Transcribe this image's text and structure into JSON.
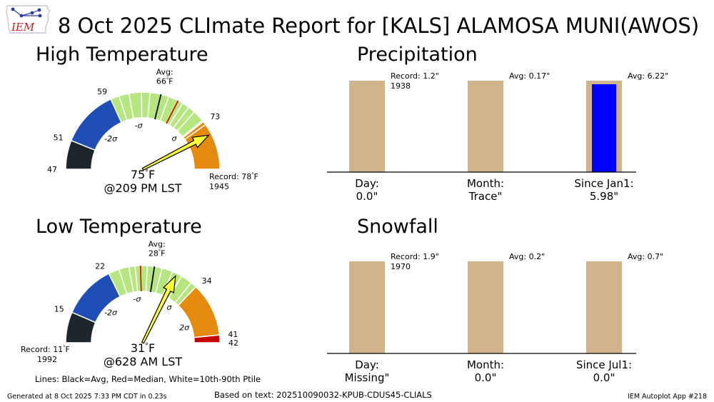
{
  "header": {
    "logo_text": "IEM",
    "title": "8 Oct 2025 CLImate Report for [KALS] ALAMOSA MUNI(AWOS)"
  },
  "footer": {
    "generated": "Generated at 8 Oct 2025 7:33 PM CDT in 0.23s",
    "based_on": "Based on text: 202510090032-KPUB-CDUS45-CLIALS",
    "app": "IEM Autoplot App #218"
  },
  "legend_note": "Lines: Black=Avg, Red=Median, White=10th-90th Ptile",
  "colors": {
    "very_cold": "#1c272d",
    "cold": "#1f4fb6",
    "normal": "#b5e67f",
    "warm": "#e68a0e",
    "very_warm": "#c40000",
    "bar": "#d2b48c",
    "bar_fill": "#0000ff",
    "needle": "#ffff33"
  },
  "chart_data": [
    {
      "type": "gauge",
      "title": "High Temperature",
      "min": 47,
      "max": 80,
      "avg": 66,
      "avg_label": "Avg:",
      "avg_value": "66$^\\circ$F",
      "median": 68.5,
      "p10": 61.6,
      "p90": 70.2,
      "observed": 75,
      "observed_label": "75$^\\circ$F",
      "observed_time": "@209 PM LST",
      "record_label": "Record: 78$^\\circ$F",
      "record_year": "1945",
      "bands": [
        {
          "from": 47,
          "to": 51,
          "color": "very_cold"
        },
        {
          "from": 51,
          "to": 59,
          "color": "cold"
        },
        {
          "from": 59,
          "to": 73,
          "color": "normal"
        },
        {
          "from": 73,
          "to": 80,
          "color": "warm"
        }
      ],
      "tick_values": [
        {
          "value": 47,
          "text": "47"
        },
        {
          "value": 51,
          "text": "51"
        },
        {
          "value": 59,
          "text": "59"
        },
        {
          "value": 73,
          "text": "73"
        }
      ],
      "sigma_labels": [
        {
          "value": 55,
          "text": "-2σ"
        },
        {
          "value": 62.5,
          "text": "-σ"
        },
        {
          "value": 71.8,
          "text": "σ"
        }
      ],
      "white_lines": [
        60.2,
        61.6,
        63.3,
        64.5,
        67.1,
        69.2,
        70.2,
        71.2,
        72.8,
        73.5
      ]
    },
    {
      "type": "gauge",
      "title": "Low Temperature",
      "min": 11,
      "max": 42,
      "avg": 28,
      "avg_label": "Avg:",
      "avg_value": "28$^\\circ$F",
      "median": 26.2,
      "p10": 22.5,
      "p90": 33.2,
      "observed": 31,
      "observed_label": "31$^\\circ$F",
      "observed_time": "@628 AM LST",
      "record_label": "Record: 11$^\\circ$F",
      "record_year": "1992",
      "bands": [
        {
          "from": 11,
          "to": 15,
          "color": "very_cold"
        },
        {
          "from": 15,
          "to": 22,
          "color": "cold"
        },
        {
          "from": 22,
          "to": 34,
          "color": "normal"
        },
        {
          "from": 34,
          "to": 41,
          "color": "warm"
        },
        {
          "from": 41,
          "to": 42,
          "color": "very_warm"
        }
      ],
      "tick_values": [
        {
          "value": 15,
          "text": "15"
        },
        {
          "value": 22,
          "text": "22"
        },
        {
          "value": 34,
          "text": "34"
        },
        {
          "value": 41,
          "text": "41"
        },
        {
          "value": 42,
          "text": "42"
        }
      ],
      "sigma_labels": [
        {
          "value": 18.5,
          "text": "-2σ"
        },
        {
          "value": 25.2,
          "text": "-σ"
        },
        {
          "value": 32.8,
          "text": "σ"
        },
        {
          "value": 38.5,
          "text": "2σ"
        }
      ],
      "white_lines": [
        23.4,
        24.7,
        25.5,
        27.1,
        29.0,
        30.4,
        31.7,
        33.2
      ]
    },
    {
      "type": "bar",
      "title": "Precipitation",
      "categories": [
        "Day:",
        "Month:",
        "Since Jan1:"
      ],
      "values": [
        "0.0\"",
        "Trace\"",
        "5.98\""
      ],
      "normals": [
        1.2,
        0.17,
        6.22
      ],
      "observed": [
        0.0,
        0.0,
        5.98
      ],
      "annotations": [
        "Record: 1.2\"",
        "Avg: 0.17\"",
        "Avg: 6.22\""
      ],
      "annotation_sub": [
        "1938",
        "",
        ""
      ]
    },
    {
      "type": "bar",
      "title": "Snowfall",
      "categories": [
        "Day:",
        "Month:",
        "Since Jul1:"
      ],
      "values": [
        "Missing\"",
        "0.0\"",
        "0.0\""
      ],
      "normals": [
        1.9,
        0.2,
        0.7
      ],
      "observed": [
        0.0,
        0.0,
        0.0
      ],
      "annotations": [
        "Record: 1.9\"",
        "Avg: 0.2\"",
        "Avg: 0.7\""
      ],
      "annotation_sub": [
        "1970",
        "",
        ""
      ]
    }
  ]
}
